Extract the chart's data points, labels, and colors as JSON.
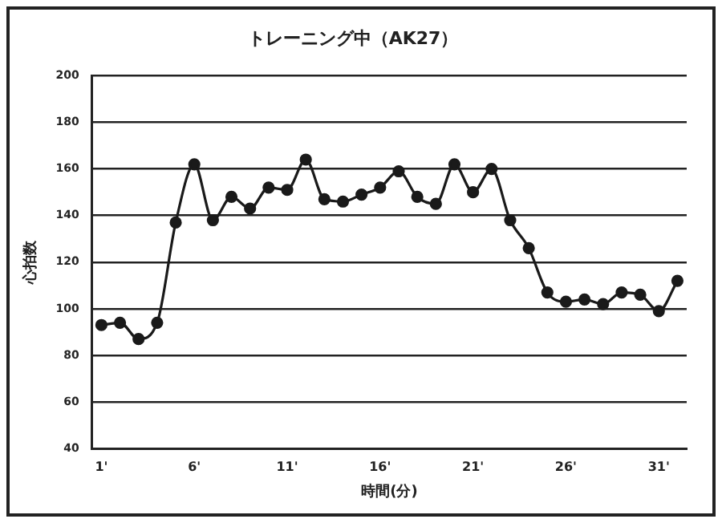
{
  "chart_data": {
    "type": "line",
    "title": "トレーニング中（AK27）",
    "xlabel": "時間(分)",
    "ylabel": "心拍数",
    "categories": [
      "1'",
      null,
      null,
      null,
      null,
      "6'",
      null,
      null,
      null,
      null,
      "11'",
      null,
      null,
      null,
      null,
      "16'",
      null,
      null,
      null,
      null,
      "21'",
      null,
      null,
      null,
      null,
      "26'",
      null,
      null,
      null,
      null,
      "31'",
      null
    ],
    "series": [
      {
        "color": "#1a1a1a",
        "values": [
          93,
          94,
          87,
          94,
          137,
          162,
          138,
          148,
          143,
          152,
          151,
          164,
          147,
          146,
          149,
          152,
          159,
          148,
          145,
          162,
          150,
          160,
          138,
          126,
          107,
          103,
          104,
          102,
          107,
          106,
          99,
          112
        ]
      }
    ],
    "ylim": [
      40,
      200
    ],
    "yticks": [
      40,
      60,
      80,
      100,
      120,
      140,
      160,
      180,
      200
    ],
    "grid": "y",
    "legend": false,
    "marker": "circle",
    "line_style": "solid"
  }
}
